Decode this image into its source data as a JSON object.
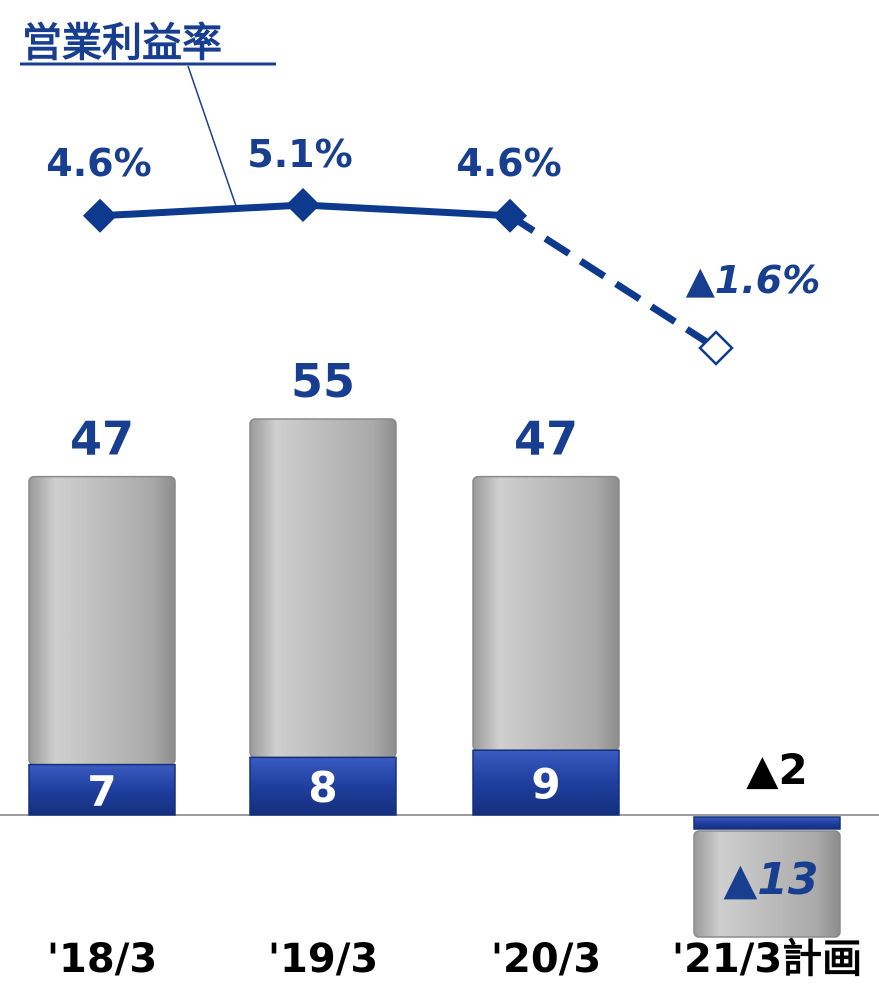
{
  "chart_data": {
    "type": "bar",
    "title": "営業利益率",
    "categories": [
      "'18/3",
      "'19/3",
      "'20/3",
      "'21/3計画"
    ],
    "series": [
      {
        "values": [
          47,
          55,
          47,
          -13
        ],
        "labels": [
          "47",
          "55",
          "47",
          "▲13"
        ],
        "color": "#b8b8b8"
      },
      {
        "values": [
          7,
          8,
          9,
          -2
        ],
        "labels": [
          "7",
          "8",
          "9",
          "▲2"
        ],
        "color": "#1f3f9f"
      }
    ],
    "line": {
      "values": [
        4.6,
        5.1,
        4.6,
        -1.6
      ],
      "labels": [
        "4.6%",
        "5.1%",
        "4.6%",
        "▲1.6%"
      ],
      "color": "#0d3a8c",
      "dashed_from_index": 2
    },
    "stacked": true,
    "axis": {
      "zero_line": true,
      "grid": false
    },
    "colors": {
      "label": "#173e8f",
      "dark": "#000000"
    }
  }
}
